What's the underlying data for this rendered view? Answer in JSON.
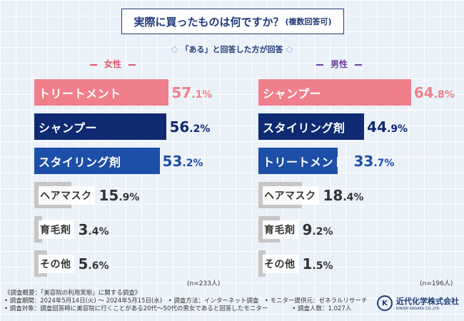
{
  "title": {
    "main": "実際に買ったものは何ですか？",
    "sub": "(複数回答可)"
  },
  "subtitle": {
    "text": "「ある」と回答した方が回答",
    "dia_left": "◇",
    "dia_right": "◇"
  },
  "chart_data": {
    "type": "bar",
    "title": "実際に買ったものは何ですか？(複数回答可)",
    "xlim": [
      0,
      100
    ],
    "panels": [
      {
        "name": "女性",
        "n_label": "(n=233人)",
        "categories": [
          "トリートメント",
          "シャンプー",
          "スタイリング剤",
          "ヘアマスク",
          "育毛剤",
          "その他"
        ],
        "values": [
          57.1,
          56.2,
          53.2,
          15.9,
          3.4,
          5.6
        ],
        "value_labels": [
          {
            "int": "57",
            "dec": ".1%"
          },
          {
            "int": "56",
            "dec": ".2%"
          },
          {
            "int": "53",
            "dec": ".2%"
          },
          {
            "int": "15",
            "dec": ".9%"
          },
          {
            "int": "3",
            "dec": ".4%"
          },
          {
            "int": "5",
            "dec": ".6%"
          }
        ],
        "colors": [
          "#f07f8b",
          "#0f2a72",
          "#1e4fa8",
          "#c6c6c6",
          "#c6c6c6",
          "#c6c6c6"
        ]
      },
      {
        "name": "男性",
        "n_label": "(n=196人)",
        "categories": [
          "シャンプー",
          "スタイリング剤",
          "トリートメント",
          "ヘアマスク",
          "育毛剤",
          "その他"
        ],
        "values": [
          64.8,
          44.9,
          33.7,
          18.4,
          9.2,
          1.5
        ],
        "value_labels": [
          {
            "int": "64",
            "dec": ".8%"
          },
          {
            "int": "44",
            "dec": ".9%"
          },
          {
            "int": "33",
            "dec": ".7%"
          },
          {
            "int": "18",
            "dec": ".4%"
          },
          {
            "int": "9",
            "dec": ".2%"
          },
          {
            "int": "1",
            "dec": ".5%"
          }
        ],
        "colors": [
          "#f07f8b",
          "#0f2a72",
          "#1e4fa8",
          "#c6c6c6",
          "#c6c6c6",
          "#c6c6c6"
        ]
      }
    ]
  },
  "colors": {
    "female_header": "#e0566b",
    "male_header": "#6b3fa0",
    "navy": "#1e3a78"
  },
  "footer": {
    "line1": "《調査概要：「美容院の利用実態」に関する調査》",
    "line2": "• 調査期間：2024年5月14日(火) ～ 2024年5月15日(水)　• 調査方法：インターネット調査　• モニター提供元：ゼネラルリサーチ",
    "line3": "• 調査対象：調査回答時に美容院に行くことがある20代～50代の男女であると回答したモニター　　　　• 調査人数：1,027人"
  },
  "logo": {
    "name": "近代化学株式会社",
    "en": "KINDAI KAGAKU CO.,LTD.",
    "mark": "K"
  }
}
